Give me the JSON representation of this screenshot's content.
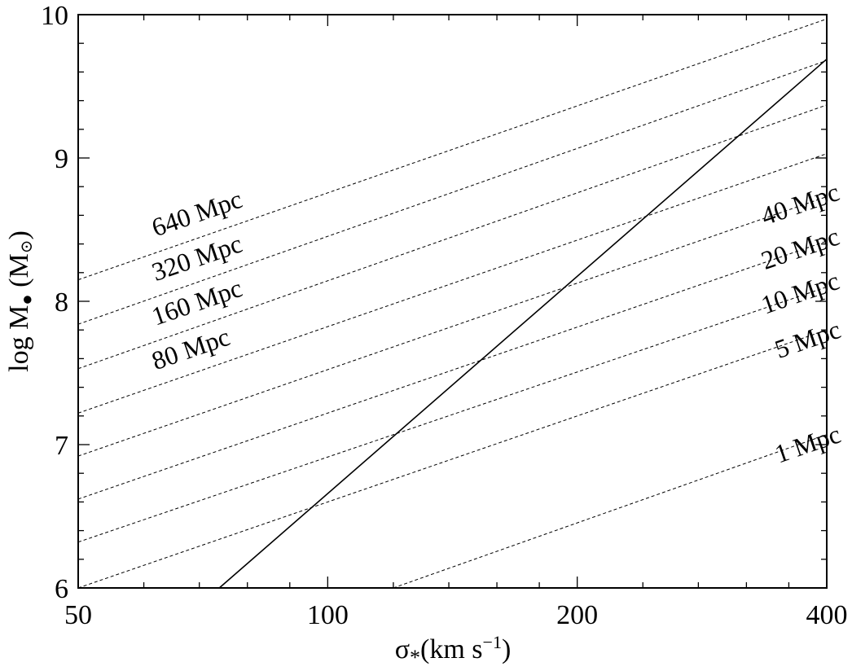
{
  "chart_data": {
    "type": "line",
    "title": "",
    "xlabel": {
      "main": "σ",
      "sub": "*",
      "unit": "(km s",
      "sup": "−1",
      "close": ")"
    },
    "ylabel": {
      "main": "log M",
      "sub": "●",
      "unit": " (M",
      "unitsub": "⊙",
      "close": ")"
    },
    "x_scale": "log",
    "xlim": [
      50,
      400
    ],
    "ylim": [
      6,
      10
    ],
    "x_ticks": [
      {
        "value": 50,
        "label": "50"
      },
      {
        "value": 100,
        "label": "100"
      },
      {
        "value": 200,
        "label": "200"
      },
      {
        "value": 400,
        "label": "400"
      }
    ],
    "y_ticks": [
      {
        "value": 6,
        "label": "6"
      },
      {
        "value": 7,
        "label": "7"
      },
      {
        "value": 8,
        "label": "8"
      },
      {
        "value": 9,
        "label": "9"
      },
      {
        "value": 10,
        "label": "10"
      }
    ],
    "series": [
      {
        "label": "1 Mpc",
        "style": "dashed",
        "points": [
          [
            120,
            6.0
          ],
          [
            400,
            7.07
          ]
        ]
      },
      {
        "label": "5 Mpc",
        "style": "dashed",
        "points": [
          [
            50,
            6.0
          ],
          [
            400,
            7.8
          ]
        ]
      },
      {
        "label": "10 Mpc",
        "style": "dashed",
        "points": [
          [
            50,
            6.32
          ],
          [
            400,
            8.1
          ]
        ]
      },
      {
        "label": "20 Mpc",
        "style": "dashed",
        "points": [
          [
            50,
            6.62
          ],
          [
            400,
            8.42
          ]
        ]
      },
      {
        "label": "40 Mpc",
        "style": "dashed",
        "points": [
          [
            50,
            6.92
          ],
          [
            400,
            8.73
          ]
        ]
      },
      {
        "label": "80 Mpc",
        "style": "dashed",
        "points": [
          [
            50,
            7.22
          ],
          [
            400,
            9.03
          ]
        ]
      },
      {
        "label": "160 Mpc",
        "style": "dashed",
        "points": [
          [
            50,
            7.53
          ],
          [
            400,
            9.37
          ]
        ]
      },
      {
        "label": "320 Mpc",
        "style": "dashed",
        "points": [
          [
            50,
            7.84
          ],
          [
            400,
            9.68
          ]
        ]
      },
      {
        "label": "640 Mpc",
        "style": "dashed",
        "points": [
          [
            50,
            8.15
          ],
          [
            400,
            9.97
          ]
        ]
      },
      {
        "style": "solid",
        "points": [
          [
            74,
            6.0
          ],
          [
            400,
            9.69
          ]
        ]
      }
    ],
    "annotations": [
      {
        "text": "640 Mpc",
        "at": [
          62,
          8.45
        ]
      },
      {
        "text": "320 Mpc",
        "at": [
          62,
          8.14
        ]
      },
      {
        "text": "160 Mpc",
        "at": [
          62,
          7.83
        ]
      },
      {
        "text": "80 Mpc",
        "at": [
          62,
          7.52
        ]
      },
      {
        "text": "40 Mpc",
        "at": [
          337,
          8.53
        ]
      },
      {
        "text": "20 Mpc",
        "at": [
          337,
          8.22
        ]
      },
      {
        "text": "10 Mpc",
        "at": [
          337,
          7.91
        ]
      },
      {
        "text": "5 Mpc",
        "at": [
          350,
          7.6
        ]
      },
      {
        "text": "1 Mpc",
        "at": [
          350,
          6.87
        ]
      }
    ]
  }
}
